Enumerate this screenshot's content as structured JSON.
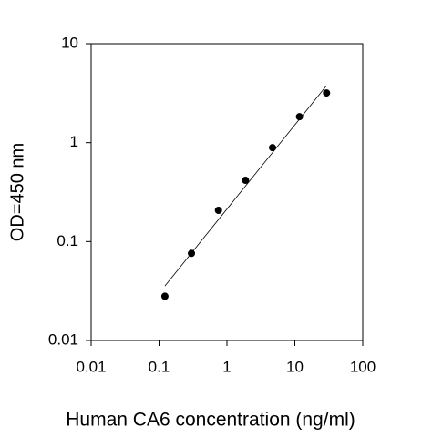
{
  "chart_data": {
    "type": "scatter",
    "x_label": "Human CA6 concentration (ng/ml)",
    "y_label": "OD=450 nm",
    "x": [
      0.122,
      0.3,
      0.75,
      1.875,
      4.69,
      11.7,
      29.3
    ],
    "series": [
      {
        "color": "#000000",
        "values": [
          0.028,
          0.076,
          0.207,
          0.416,
          0.89,
          1.83,
          3.18
        ]
      }
    ],
    "fit_line": {
      "color": "#000000",
      "x": [
        0.122,
        29.3
      ],
      "y": [
        0.0356,
        3.77
      ]
    },
    "xlim": [
      0.01,
      100
    ],
    "ylim": [
      0.01,
      10
    ],
    "xticks": [
      0.01,
      0.1,
      1,
      10,
      100
    ],
    "yticks": [
      0.01,
      0.1,
      1,
      10
    ],
    "xscale": "log",
    "yscale": "log"
  }
}
